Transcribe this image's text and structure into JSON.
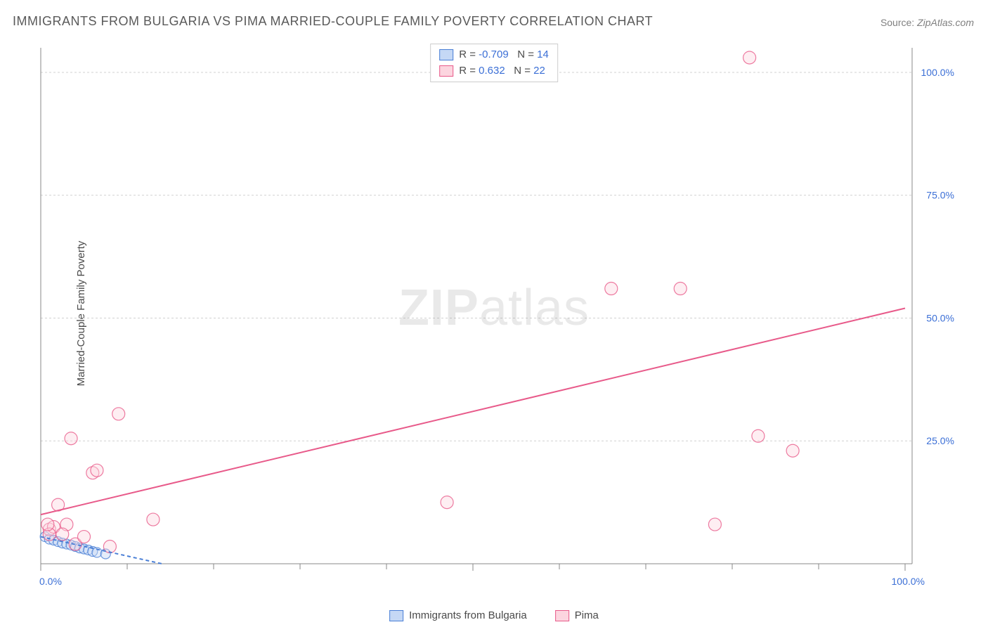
{
  "title": "IMMIGRANTS FROM BULGARIA VS PIMA MARRIED-COUPLE FAMILY POVERTY CORRELATION CHART",
  "source_label": "Source:",
  "source_value": "ZipAtlas.com",
  "y_axis_label": "Married-Couple Family Poverty",
  "watermark_zip": "ZIP",
  "watermark_atlas": "atlas",
  "chart": {
    "type": "scatter",
    "background_color": "#ffffff",
    "grid_color": "#d0d0d0",
    "axis_color": "#888888",
    "tick_label_color": "#3b6fd6",
    "xlim": [
      0,
      100
    ],
    "ylim": [
      0,
      105
    ],
    "x_ticks": [
      0,
      50,
      100
    ],
    "x_tick_labels": [
      "0.0%",
      "",
      "100.0%"
    ],
    "x_minor_ticks": [
      10,
      20,
      30,
      40,
      60,
      70,
      80,
      90
    ],
    "y_ticks": [
      25,
      50,
      75,
      100
    ],
    "y_tick_labels": [
      "25.0%",
      "50.0%",
      "75.0%",
      "100.0%"
    ],
    "series": [
      {
        "name": "Immigrants from Bulgaria",
        "color_fill": "#c5d8f5",
        "color_stroke": "#4a7fd6",
        "marker_radius": 7,
        "fill_opacity": 0.45,
        "R": "-0.709",
        "N": "14",
        "points": [
          [
            0.5,
            5.5
          ],
          [
            1.0,
            5.0
          ],
          [
            1.5,
            4.8
          ],
          [
            2.0,
            4.5
          ],
          [
            2.5,
            4.2
          ],
          [
            3.0,
            4.0
          ],
          [
            3.5,
            3.8
          ],
          [
            4.0,
            3.5
          ],
          [
            4.5,
            3.2
          ],
          [
            5.0,
            3.0
          ],
          [
            5.5,
            2.8
          ],
          [
            6.0,
            2.5
          ],
          [
            6.5,
            2.3
          ],
          [
            7.5,
            2.0
          ]
        ],
        "trend_line": {
          "x1": 0,
          "y1": 5.5,
          "x2": 14,
          "y2": 0,
          "dashed": true,
          "stroke": "#4a7fd6",
          "width": 2
        }
      },
      {
        "name": "Pima",
        "color_fill": "#fcd5df",
        "color_stroke": "#e85a8a",
        "marker_radius": 9,
        "fill_opacity": 0.4,
        "R": "0.632",
        "N": "22",
        "points": [
          [
            1,
            7
          ],
          [
            2,
            12
          ],
          [
            3,
            8
          ],
          [
            3.5,
            25.5
          ],
          [
            4,
            4
          ],
          [
            5,
            5.5
          ],
          [
            6,
            18.5
          ],
          [
            6.5,
            19
          ],
          [
            8,
            3.5
          ],
          [
            9,
            30.5
          ],
          [
            13,
            9
          ],
          [
            47,
            12.5
          ],
          [
            66,
            56
          ],
          [
            74,
            56
          ],
          [
            78,
            8
          ],
          [
            82,
            103
          ],
          [
            83,
            26
          ],
          [
            87,
            23
          ],
          [
            1.5,
            7.5
          ],
          [
            2.5,
            6
          ],
          [
            1,
            6
          ],
          [
            0.8,
            8
          ]
        ],
        "trend_line": {
          "x1": 0,
          "y1": 10,
          "x2": 100,
          "y2": 52,
          "dashed": false,
          "stroke": "#e85a8a",
          "width": 2
        }
      }
    ]
  },
  "legend_top": {
    "rows": [
      {
        "swatch_fill": "#c5d8f5",
        "swatch_stroke": "#4a7fd6",
        "r_label": "R =",
        "r_val": "-0.709",
        "n_label": "N =",
        "n_val": "14"
      },
      {
        "swatch_fill": "#fcd5df",
        "swatch_stroke": "#e85a8a",
        "r_label": "R =",
        "r_val": " 0.632",
        "n_label": "N =",
        "n_val": "22"
      }
    ]
  },
  "legend_bottom": [
    {
      "swatch_fill": "#c5d8f5",
      "swatch_stroke": "#4a7fd6",
      "label": "Immigrants from Bulgaria"
    },
    {
      "swatch_fill": "#fcd5df",
      "swatch_stroke": "#e85a8a",
      "label": "Pima"
    }
  ]
}
